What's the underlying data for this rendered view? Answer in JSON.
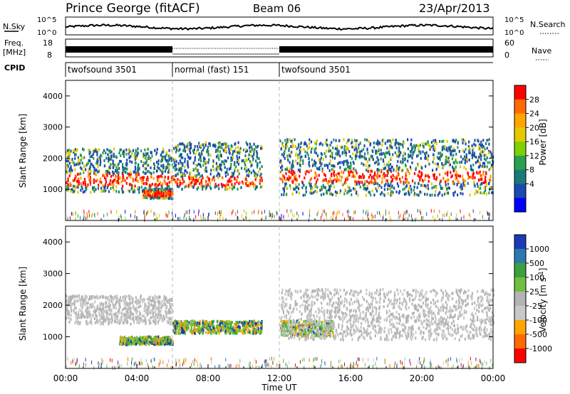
{
  "header": {
    "station": "Prince George (fitACF)",
    "beam": "Beam 06",
    "date": "23/Apr/2013"
  },
  "top_panels": {
    "nsky_label": "N.Sky",
    "nsky_ticks": [
      "10^5",
      "10^0"
    ],
    "nsearch_label": "N.Search",
    "nsearch_ticks": [
      "10^5",
      "10^0"
    ],
    "freq_label": "Freq.",
    "freq_unit": "[MHz]",
    "freq_ticks": [
      "18",
      "8"
    ],
    "nave_label": "Nave",
    "nave_ticks": [
      "60",
      "0"
    ],
    "cpid_label": "CPID",
    "cpid_segments": [
      {
        "label": "twofsound 3501",
        "start_h": 0,
        "end_h": 6
      },
      {
        "label": "normal (fast) 151",
        "start_h": 6,
        "end_h": 12
      },
      {
        "label": "twofsound 3501",
        "start_h": 12,
        "end_h": 24
      }
    ]
  },
  "chart_data": [
    {
      "type": "heatmap",
      "name": "power-panel",
      "ylabel": "Slant Range [km]",
      "xlim": [
        0,
        24
      ],
      "ylim": [
        0,
        4500
      ],
      "yticks": [
        "1000",
        "2000",
        "3000",
        "4000"
      ],
      "colorbar": {
        "label": "Power [dB]",
        "ticks": [
          "28",
          "24",
          "20",
          "16",
          "12",
          "8",
          "4"
        ],
        "colors": [
          "#ff0000",
          "#ff6a00",
          "#ffa500",
          "#e6c800",
          "#7fd000",
          "#2aa050",
          "#1a7a7a",
          "#1a4ab0",
          "#0000ff"
        ]
      },
      "echo_bands": [
        {
          "start_h": 0.0,
          "end_h": 6.0,
          "range_km": [
            900,
            2300
          ],
          "core_km": [
            1100,
            1500
          ]
        },
        {
          "start_h": 4.3,
          "end_h": 6.0,
          "range_km": [
            700,
            1000
          ],
          "core_km": [
            750,
            950
          ]
        },
        {
          "start_h": 6.0,
          "end_h": 11.0,
          "range_km": [
            1000,
            2500
          ],
          "core_km": [
            1100,
            1400
          ]
        },
        {
          "start_h": 12.0,
          "end_h": 24.0,
          "range_km": [
            800,
            2600
          ],
          "core_km": [
            1200,
            1600
          ]
        }
      ]
    },
    {
      "type": "heatmap",
      "name": "velocity-panel",
      "xlabel": "Time UT",
      "ylabel": "Slant Range [km]",
      "xlim": [
        0,
        24
      ],
      "ylim": [
        0,
        4500
      ],
      "xticks": [
        "00:00",
        "04:00",
        "08:00",
        "12:00",
        "16:00",
        "20:00",
        "00:00"
      ],
      "yticks": [
        "1000",
        "2000",
        "3000",
        "4000"
      ],
      "colorbar": {
        "label": "Velocity [m s^-1]",
        "ticks": [
          "1000",
          "500",
          "100",
          "25",
          "-25",
          "-100",
          "-500",
          "-1000"
        ],
        "colors": [
          "#1a3ab8",
          "#2a7ab0",
          "#3aa040",
          "#70c040",
          "#b4b4b4",
          "#c8c8c8",
          "#ffa500",
          "#ff6a00",
          "#ff0000"
        ]
      },
      "echo_bands": [
        {
          "start_h": 0.0,
          "end_h": 6.0,
          "range_km": [
            1400,
            2300
          ],
          "kind": "ground"
        },
        {
          "start_h": 3.0,
          "end_h": 6.0,
          "range_km": [
            750,
            1000
          ],
          "kind": "flow"
        },
        {
          "start_h": 6.0,
          "end_h": 11.0,
          "range_km": [
            1100,
            1500
          ],
          "kind": "flow"
        },
        {
          "start_h": 12.0,
          "end_h": 15.0,
          "range_km": [
            1000,
            1500
          ],
          "kind": "flow"
        },
        {
          "start_h": 12.0,
          "end_h": 24.0,
          "range_km": [
            900,
            2500
          ],
          "kind": "ground"
        }
      ]
    }
  ]
}
